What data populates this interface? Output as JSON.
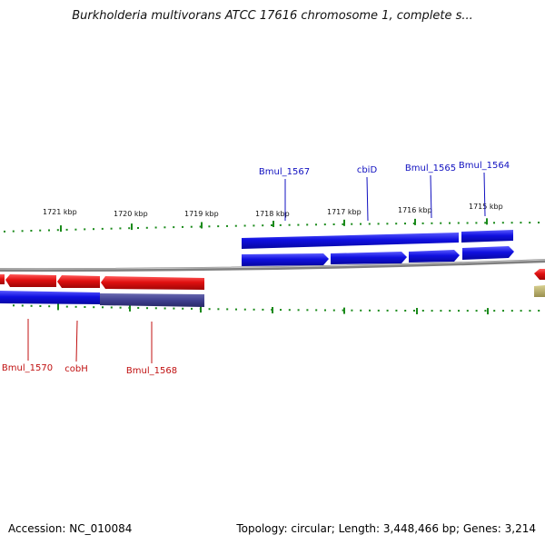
{
  "title": "Burkholderia multivorans ATCC 17616 chromosome 1, complete s...",
  "footer": {
    "accession": "Accession: NC_010084",
    "summary": "Topology: circular; Length: 3,448,466 bp; Genes: 3,214"
  },
  "colors": {
    "forward_gene": "#1010e0",
    "reverse_gene": "#e01010",
    "highlight_gene": "#404090",
    "tick": "#1a8a1a",
    "backbone": "#808080",
    "forward_label": "#1010c0",
    "reverse_label": "#c01010"
  },
  "ticks": [
    "1721 kbp",
    "1720 kbp",
    "1719 kbp",
    "1718 kbp",
    "1717 kbp",
    "1716 kbp",
    "1715 kbp"
  ],
  "forward_labels": [
    "Bmul_1567",
    "cbiD",
    "Bmul_1565",
    "Bmul_1564"
  ],
  "reverse_labels": [
    "Bmul_1570",
    "cobH",
    "Bmul_1568"
  ]
}
